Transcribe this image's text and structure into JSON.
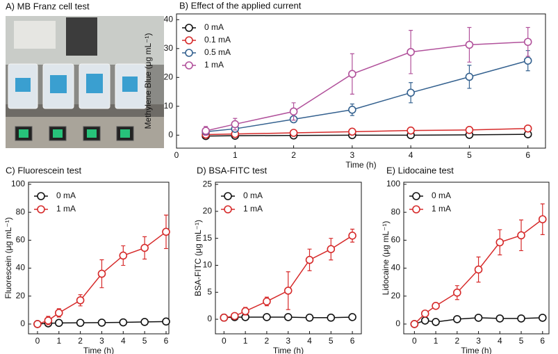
{
  "photo_panel": {
    "title": "A) MB Franz cell test"
  },
  "chart_data": [
    {
      "type": "line",
      "title": "B) Effect of the applied current",
      "xlabel": "Time (h)",
      "ylabel": "Methylene Blue (μg mL⁻¹)",
      "x": [
        0.5,
        1,
        2,
        3,
        4,
        5,
        6
      ],
      "xlim": [
        0,
        6.3
      ],
      "xticks": [
        0,
        1,
        2,
        3,
        4,
        5,
        6
      ],
      "ylim": [
        -4.5,
        42
      ],
      "yticks": [
        0,
        10,
        20,
        30,
        40
      ],
      "legend": "upper left",
      "series": [
        {
          "name": "0 mA",
          "color": "#111111",
          "values": [
            -0.3,
            -0.2,
            -0.1,
            0,
            0,
            0.1,
            0.3
          ],
          "errors": [
            0.5,
            0.5,
            0.5,
            0.5,
            0.5,
            0.5,
            0.5
          ]
        },
        {
          "name": "0.1 mA",
          "color": "#d62a2a",
          "values": [
            0.2,
            0.4,
            0.8,
            1.2,
            1.6,
            1.8,
            2.3
          ],
          "errors": [
            0.5,
            0.5,
            0.5,
            0.6,
            0.6,
            0.6,
            0.6
          ]
        },
        {
          "name": "0.5 mA",
          "color": "#34618f",
          "values": [
            1.2,
            2.2,
            5.5,
            8.8,
            14.7,
            20.2,
            25.8
          ],
          "errors": [
            1,
            1,
            1,
            2,
            3.5,
            4,
            3.5
          ]
        },
        {
          "name": "1 mA",
          "color": "#b1519b",
          "values": [
            1.5,
            3.8,
            8.2,
            21.2,
            28.8,
            31.3,
            32.3
          ],
          "errors": [
            1.5,
            2,
            3,
            7,
            7.5,
            6,
            5
          ]
        }
      ]
    },
    {
      "type": "line",
      "title": "C) Fluorescein test",
      "xlabel": "Time (h)",
      "ylabel": "Fluorescein  (μg mL⁻¹)",
      "x": [
        0,
        0.5,
        1,
        2,
        3,
        4,
        5,
        6
      ],
      "xlim": [
        -0.42,
        6.13
      ],
      "xticks": [
        0,
        1,
        2,
        3,
        4,
        5,
        6
      ],
      "ylim": [
        -7,
        101.5
      ],
      "yticks": [
        0,
        20,
        40,
        60,
        80,
        100
      ],
      "legend": "upper left",
      "series": [
        {
          "name": "0 mA",
          "color": "#111111",
          "values": [
            0,
            0.5,
            0.8,
            0.9,
            1,
            1.2,
            1.5,
            1.8
          ],
          "errors": [
            2,
            2,
            2,
            2,
            2,
            2,
            2,
            2
          ]
        },
        {
          "name": "1 mA",
          "color": "#d62a2a",
          "values": [
            0,
            2.5,
            8,
            17,
            36,
            49,
            54.5,
            66
          ],
          "errors": [
            1,
            3,
            3,
            4,
            10,
            7,
            8,
            12
          ]
        }
      ]
    },
    {
      "type": "line",
      "title": "D) BSA-FITC test",
      "xlabel": "Time (h)",
      "ylabel": "BSA-FITC  (μg mL⁻¹)",
      "x": [
        0,
        0.5,
        1,
        2,
        3,
        4,
        5,
        6
      ],
      "xlim": [
        -0.4,
        6.42
      ],
      "xticks": [
        0,
        1,
        2,
        3,
        4,
        5,
        6
      ],
      "ylim": [
        -2.7,
        25.4
      ],
      "yticks": [
        0,
        5,
        10,
        15,
        20,
        25
      ],
      "legend": "upper left",
      "series": [
        {
          "name": "0 mA",
          "color": "#111111",
          "values": [
            0.3,
            0.4,
            0.4,
            0.4,
            0.4,
            0.3,
            0.3,
            0.4
          ],
          "errors": [
            0.4,
            0.4,
            0.4,
            0.4,
            0.4,
            0.4,
            0.4,
            0.4
          ]
        },
        {
          "name": "1 mA",
          "color": "#d62a2a",
          "values": [
            0.3,
            0.6,
            1.5,
            3.3,
            5.3,
            11,
            13,
            15.5
          ],
          "errors": [
            0.3,
            0.3,
            0.7,
            0.8,
            3.5,
            2,
            2,
            1.2
          ]
        }
      ]
    },
    {
      "type": "line",
      "title": "E) Lidocaine test",
      "xlabel": "Time (h)",
      "ylabel": "Lidocaine  (μg mL⁻¹)",
      "x": [
        0,
        0.5,
        1,
        2,
        3,
        4,
        5,
        6
      ],
      "xlim": [
        -0.5,
        6.3
      ],
      "xticks": [
        0,
        1,
        2,
        3,
        4,
        5,
        6
      ],
      "ylim": [
        -7,
        101.5
      ],
      "yticks": [
        0,
        20,
        40,
        60,
        80,
        100
      ],
      "legend": "upper left",
      "series": [
        {
          "name": "0 mA",
          "color": "#111111",
          "values": [
            0,
            2.5,
            1.5,
            3.5,
            4.5,
            4,
            4,
            4.5
          ],
          "errors": [
            2,
            2,
            2,
            2,
            2,
            2,
            2,
            2
          ]
        },
        {
          "name": "1 mA",
          "color": "#d62a2a",
          "values": [
            0,
            7.5,
            13,
            22.5,
            39,
            58.5,
            63.5,
            75
          ],
          "errors": [
            1,
            2,
            2,
            5,
            9,
            9,
            11,
            11
          ]
        }
      ]
    }
  ]
}
